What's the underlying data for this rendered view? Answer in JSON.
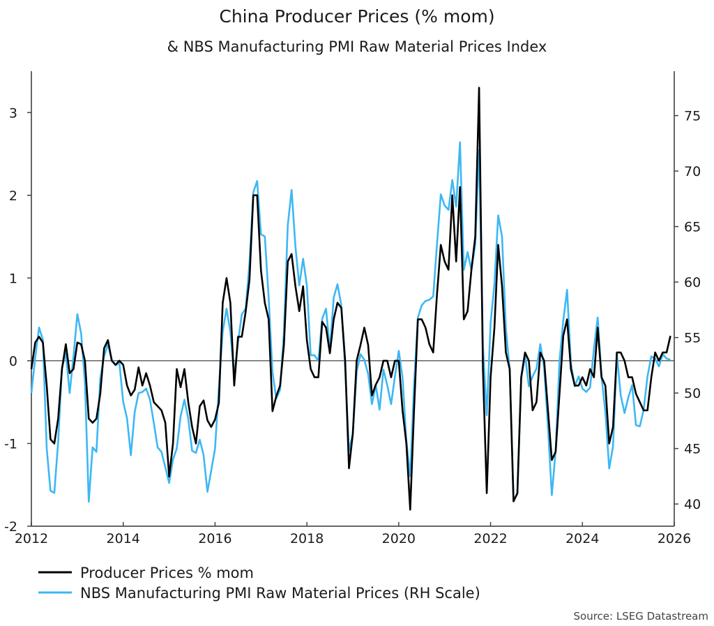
{
  "chart_data": {
    "type": "line",
    "title": "China Producer Prices (% mom)",
    "subtitle": "& NBS Manufacturing PMI Raw Material Prices Index",
    "source": "Source: LSEG Datastream",
    "x_start": "2012-01",
    "x_frequency": "monthly",
    "xlim": [
      2012,
      2026
    ],
    "x_ticks": [
      "2012",
      "2014",
      "2016",
      "2018",
      "2020",
      "2022",
      "2024",
      "2026"
    ],
    "y_left": {
      "ylim": [
        -2,
        3.5
      ],
      "ticks": [
        "-2",
        "-1",
        "0",
        "1",
        "2",
        "3"
      ]
    },
    "y_right": {
      "ylim": [
        38,
        79
      ],
      "ticks": [
        "40",
        "45",
        "50",
        "55",
        "60",
        "65",
        "70",
        "75"
      ]
    },
    "zero_line": true,
    "grid": false,
    "legend_position": "bottom-left",
    "series": [
      {
        "name": "Producer Prices % mom",
        "axis": "left",
        "color": "#000000",
        "values": [
          -0.1,
          0.22,
          0.29,
          0.22,
          -0.3,
          -0.95,
          -1.0,
          -0.7,
          -0.1,
          0.2,
          -0.15,
          -0.1,
          0.22,
          0.2,
          0.0,
          -0.7,
          -0.75,
          -0.7,
          -0.4,
          0.15,
          0.25,
          0.0,
          -0.05,
          0.0,
          -0.05,
          -0.3,
          -0.42,
          -0.35,
          -0.08,
          -0.3,
          -0.15,
          -0.3,
          -0.5,
          -0.55,
          -0.6,
          -0.75,
          -1.4,
          -1.0,
          -0.1,
          -0.32,
          -0.1,
          -0.5,
          -0.8,
          -1.0,
          -0.55,
          -0.48,
          -0.72,
          -0.8,
          -0.71,
          -0.51,
          0.7,
          1.0,
          0.7,
          -0.3,
          0.29,
          0.29,
          0.59,
          0.98,
          2.0,
          2.0,
          1.09,
          0.7,
          0.5,
          -0.61,
          -0.43,
          -0.3,
          0.19,
          1.2,
          1.29,
          0.9,
          0.6,
          0.9,
          0.25,
          -0.1,
          -0.2,
          -0.2,
          0.47,
          0.4,
          0.09,
          0.5,
          0.7,
          0.64,
          0.0,
          -1.3,
          -0.88,
          0.0,
          0.19,
          0.4,
          0.19,
          -0.42,
          -0.29,
          -0.2,
          0.0,
          0.0,
          -0.2,
          0.0,
          0.0,
          -0.6,
          -1.0,
          -1.8,
          -0.6,
          0.5,
          0.5,
          0.4,
          0.2,
          0.1,
          0.8,
          1.4,
          1.2,
          1.1,
          2.0,
          1.2,
          2.1,
          0.5,
          0.6,
          1.1,
          1.5,
          3.3,
          -0.1,
          -1.6,
          -0.2,
          0.4,
          1.4,
          0.9,
          0.1,
          -0.1,
          -1.7,
          -1.6,
          -0.2,
          0.1,
          0.0,
          -0.6,
          -0.5,
          0.1,
          0.0,
          -0.6,
          -1.2,
          -1.1,
          -0.4,
          0.3,
          0.5,
          -0.1,
          -0.3,
          -0.3,
          -0.2,
          -0.3,
          -0.1,
          -0.2,
          0.4,
          -0.2,
          -0.3,
          -1.0,
          -0.8,
          0.1,
          0.1,
          0.0,
          -0.2,
          -0.2,
          -0.4,
          -0.5,
          -0.6,
          -0.6,
          -0.2,
          0.1,
          0.0,
          0.1,
          0.1,
          0.3
        ]
      },
      {
        "name": "NBS Manufacturing PMI Raw Material Prices (RH Scale)",
        "axis": "right",
        "color": "#3DB7F4",
        "values": [
          50.0,
          53.2,
          55.9,
          54.8,
          45.0,
          41.2,
          41.0,
          45.6,
          52.3,
          53.6,
          50.0,
          53.3,
          57.1,
          55.4,
          51.0,
          40.2,
          45.1,
          44.7,
          51.3,
          53.3,
          54.4,
          53.0,
          52.5,
          52.7,
          49.2,
          47.7,
          44.4,
          48.3,
          50.0,
          50.1,
          50.4,
          49.4,
          47.3,
          45.1,
          44.7,
          43.3,
          41.9,
          44.0,
          45.0,
          47.9,
          49.4,
          47.7,
          44.8,
          44.6,
          45.8,
          44.4,
          41.1,
          43.0,
          45.0,
          50.5,
          55.5,
          57.6,
          55.5,
          51.5,
          54.6,
          57.1,
          57.6,
          61.7,
          68.1,
          69.1,
          64.3,
          64.1,
          58.6,
          51.9,
          49.5,
          50.3,
          55.5,
          65.1,
          68.3,
          63.2,
          59.7,
          62.1,
          59.7,
          53.4,
          53.4,
          52.9,
          56.7,
          57.6,
          53.8,
          58.6,
          59.8,
          57.9,
          52.3,
          44.8,
          46.3,
          51.9,
          53.5,
          53.0,
          51.7,
          49.0,
          50.7,
          48.5,
          52.1,
          50.7,
          49.0,
          51.5,
          53.8,
          51.4,
          45.7,
          42.5,
          50.7,
          56.8,
          57.9,
          58.3,
          58.4,
          58.7,
          63.4,
          67.9,
          66.9,
          66.5,
          69.2,
          66.8,
          72.6,
          61.1,
          62.7,
          61.1,
          63.4,
          71.9,
          54.3,
          48.0,
          56.3,
          59.8,
          66.0,
          64.1,
          55.8,
          52.1,
          40.3,
          40.9,
          51.3,
          53.4,
          50.6,
          51.5,
          52.2,
          54.4,
          52.3,
          46.9,
          40.8,
          44.8,
          52.9,
          56.5,
          59.3,
          52.7,
          50.6,
          51.5,
          50.4,
          50.1,
          50.5,
          54.0,
          56.8,
          51.5,
          48.3,
          43.2,
          45.2,
          53.5,
          49.8,
          48.2,
          49.6,
          50.7,
          47.1,
          47.0,
          48.5,
          51.5,
          53.3,
          53.1,
          52.4,
          53.5,
          53.1,
          53.0
        ]
      }
    ]
  }
}
